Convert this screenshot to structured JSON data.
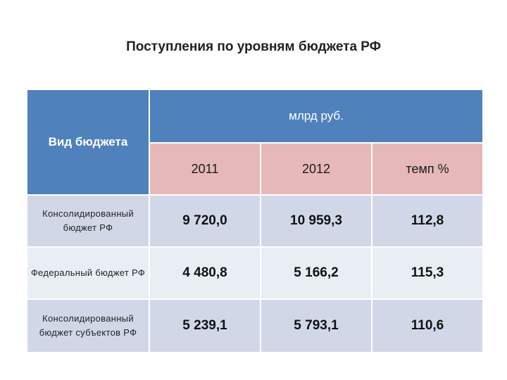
{
  "title": "Поступления по уровням бюджета РФ",
  "table": {
    "type_header": "Вид бюджета",
    "unit_header": "млрд руб.",
    "column_headers": [
      "2011",
      "2012",
      "темп %"
    ],
    "rows": [
      {
        "label": "Консолидированный бюджет РФ",
        "values": [
          "9 720,0",
          "10 959,3",
          "112,8"
        ]
      },
      {
        "label": "Федеральный бюджет РФ",
        "values": [
          "4 480,8",
          "5 166,2",
          "115,3"
        ]
      },
      {
        "label": "Консолидированный бюджет субъектов РФ",
        "values": [
          "5 239,1",
          "5 793,1",
          "110,6"
        ]
      }
    ]
  },
  "colors": {
    "header_blue": "#4f81bd",
    "year_header_pink": "#e6b9b8",
    "row_band_dark": "#d0d8e8",
    "row_band_light": "#e9edf4"
  }
}
